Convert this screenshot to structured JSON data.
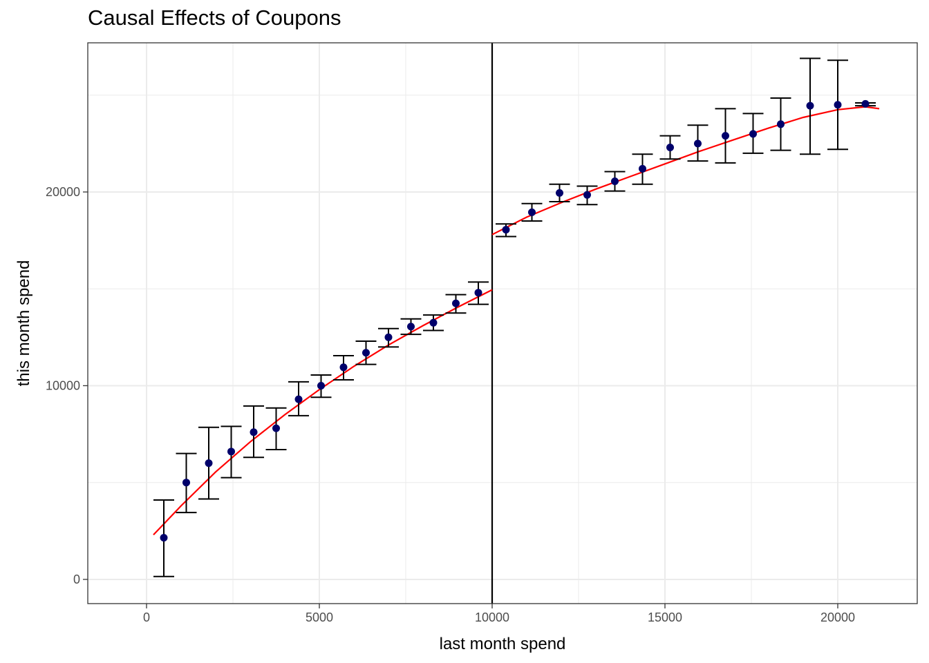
{
  "chart_data": {
    "type": "scatter",
    "title": "Causal Effects of Coupons",
    "xlabel": "last month spend",
    "ylabel": "this month spend",
    "xlim": [
      -1700,
      22300
    ],
    "ylim": [
      -1250,
      27700
    ],
    "x_ticks": [
      0,
      5000,
      10000,
      15000,
      20000
    ],
    "x_tick_labels": [
      "0",
      "5000",
      "10000",
      "15000",
      "20000"
    ],
    "y_ticks": [
      0,
      10000,
      20000
    ],
    "y_tick_labels": [
      "0",
      "10000",
      "20000"
    ],
    "grid": true,
    "cutoff": 10000,
    "colors": {
      "points": "#00006b",
      "fit": "#ff0000",
      "errorbar": "#000000",
      "cutoff": "#000000",
      "grid": "#ebebeb"
    },
    "series": [
      {
        "type": "points-with-errorbars",
        "points": [
          {
            "x": 500,
            "y": 2150,
            "lo": 150,
            "hi": 4100
          },
          {
            "x": 1150,
            "y": 5000,
            "lo": 3450,
            "hi": 6500
          },
          {
            "x": 1800,
            "y": 6000,
            "lo": 4150,
            "hi": 7850
          },
          {
            "x": 2450,
            "y": 6600,
            "lo": 5250,
            "hi": 7900
          },
          {
            "x": 3100,
            "y": 7600,
            "lo": 6300,
            "hi": 8950
          },
          {
            "x": 3750,
            "y": 7800,
            "lo": 6700,
            "hi": 8850
          },
          {
            "x": 4400,
            "y": 9300,
            "lo": 8450,
            "hi": 10200
          },
          {
            "x": 5050,
            "y": 10000,
            "lo": 9400,
            "hi": 10550
          },
          {
            "x": 5700,
            "y": 10950,
            "lo": 10300,
            "hi": 11550
          },
          {
            "x": 6350,
            "y": 11700,
            "lo": 11100,
            "hi": 12300
          },
          {
            "x": 7000,
            "y": 12500,
            "lo": 12000,
            "hi": 12950
          },
          {
            "x": 7650,
            "y": 13050,
            "lo": 12650,
            "hi": 13450
          },
          {
            "x": 8300,
            "y": 13250,
            "lo": 12850,
            "hi": 13650
          },
          {
            "x": 8950,
            "y": 14250,
            "lo": 13750,
            "hi": 14700
          },
          {
            "x": 9600,
            "y": 14800,
            "lo": 14200,
            "hi": 15350
          },
          {
            "x": 10400,
            "y": 18050,
            "lo": 17700,
            "hi": 18350
          },
          {
            "x": 11150,
            "y": 18950,
            "lo": 18500,
            "hi": 19400
          },
          {
            "x": 11950,
            "y": 19950,
            "lo": 19500,
            "hi": 20400
          },
          {
            "x": 12750,
            "y": 19850,
            "lo": 19350,
            "hi": 20300
          },
          {
            "x": 13550,
            "y": 20550,
            "lo": 20050,
            "hi": 21050
          },
          {
            "x": 14350,
            "y": 21200,
            "lo": 20400,
            "hi": 21950
          },
          {
            "x": 15150,
            "y": 22300,
            "lo": 21700,
            "hi": 22900
          },
          {
            "x": 15950,
            "y": 22500,
            "lo": 21600,
            "hi": 23450
          },
          {
            "x": 16750,
            "y": 22900,
            "lo": 21500,
            "hi": 24300
          },
          {
            "x": 17550,
            "y": 23000,
            "lo": 22000,
            "hi": 24050
          },
          {
            "x": 18350,
            "y": 23500,
            "lo": 22150,
            "hi": 24850
          },
          {
            "x": 19200,
            "y": 24450,
            "lo": 21950,
            "hi": 26900
          },
          {
            "x": 20000,
            "y": 24500,
            "lo": 22200,
            "hi": 26800
          },
          {
            "x": 20800,
            "y": 24550,
            "lo": 24450,
            "hi": 24600
          }
        ]
      },
      {
        "type": "fit-line",
        "segments": [
          {
            "x": [
              200,
              1000,
              2000,
              3000,
              4000,
              5000,
              6000,
              7000,
              8000,
              9000,
              10000
            ],
            "y": [
              2300,
              3800,
              5550,
              7100,
              8500,
              9800,
              11000,
              12100,
              13100,
              14050,
              14950
            ]
          },
          {
            "x": [
              10000,
              11000,
              12000,
              13000,
              14000,
              15000,
              16000,
              17000,
              18000,
              19000,
              20000,
              20800,
              21200
            ],
            "y": [
              17800,
              18700,
              19450,
              20150,
              20800,
              21450,
              22100,
              22700,
              23300,
              23850,
              24250,
              24400,
              24300
            ]
          }
        ]
      }
    ]
  }
}
